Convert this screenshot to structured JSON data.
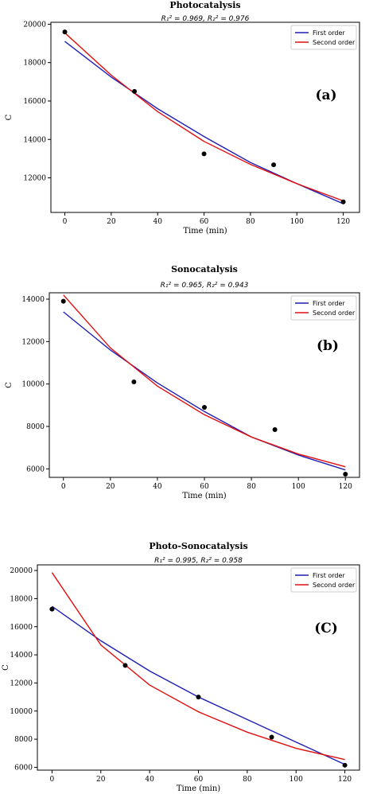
{
  "chart_data": [
    {
      "type": "line",
      "title": "Photocatalysis",
      "subtitle": "R₁² = 0.969, R₂² = 0.976",
      "panel_label": "(a)",
      "xlabel": "Time (min)",
      "ylabel": "C",
      "xlim": [
        -6,
        127
      ],
      "ylim": [
        10200,
        20100
      ],
      "xticks": [
        0,
        20,
        40,
        60,
        80,
        100,
        120
      ],
      "yticks": [
        12000,
        14000,
        16000,
        18000,
        20000
      ],
      "legend": {
        "position": "top-right",
        "entries": [
          "First order",
          "Second order"
        ]
      },
      "points": {
        "x": [
          0,
          30,
          60,
          90,
          120
        ],
        "y": [
          19600,
          16500,
          13250,
          12680,
          10750
        ]
      },
      "series": [
        {
          "name": "First order",
          "color": "#1f1fb4",
          "x": [
            0,
            20,
            40,
            60,
            80,
            100,
            120
          ],
          "y": [
            19100,
            17250,
            15600,
            14150,
            12800,
            11700,
            10650
          ]
        },
        {
          "name": "Second order",
          "color": "#e01010",
          "x": [
            0,
            20,
            40,
            60,
            80,
            100,
            120
          ],
          "y": [
            19550,
            17350,
            15450,
            13900,
            12700,
            11700,
            10800
          ]
        }
      ]
    },
    {
      "type": "line",
      "title": "Sonocatalysis",
      "subtitle": "R₁² = 0.965, R₂² = 0.943",
      "panel_label": "(b)",
      "xlabel": "Time (min)",
      "ylabel": "C",
      "xlim": [
        -6,
        126
      ],
      "ylim": [
        5600,
        14300
      ],
      "xticks": [
        0,
        20,
        40,
        60,
        80,
        100,
        120
      ],
      "yticks": [
        6000,
        8000,
        10000,
        12000,
        14000
      ],
      "legend": {
        "position": "top-right",
        "entries": [
          "First order",
          "Second order"
        ]
      },
      "points": {
        "x": [
          0,
          30,
          60,
          90,
          120
        ],
        "y": [
          13900,
          10100,
          8900,
          7850,
          5750
        ]
      },
      "series": [
        {
          "name": "First order",
          "color": "#1f1fb4",
          "x": [
            0,
            20,
            40,
            60,
            80,
            100,
            120
          ],
          "y": [
            13400,
            11600,
            10050,
            8700,
            7500,
            6650,
            5950
          ]
        },
        {
          "name": "Second order",
          "color": "#e01010",
          "x": [
            0,
            20,
            40,
            60,
            80,
            100,
            120
          ],
          "y": [
            14200,
            11700,
            9900,
            8550,
            7500,
            6700,
            6100
          ]
        }
      ]
    },
    {
      "type": "line",
      "title": "Photo-Sonocatalysis",
      "subtitle": "R₁² = 0.995, R₂² = 0.958",
      "panel_label": "(C)",
      "xlabel": "Time (min)",
      "ylabel": "C",
      "xlim": [
        -6,
        126
      ],
      "ylim": [
        5800,
        20400
      ],
      "xticks": [
        0,
        20,
        40,
        60,
        80,
        100,
        120
      ],
      "yticks": [
        6000,
        8000,
        10000,
        12000,
        14000,
        16000,
        18000,
        20000
      ],
      "legend": {
        "position": "top-right",
        "entries": [
          "First order",
          "Second order"
        ]
      },
      "points": {
        "x": [
          0,
          30,
          60,
          90,
          120
        ],
        "y": [
          17250,
          13250,
          11000,
          8150,
          6150
        ]
      },
      "series": [
        {
          "name": "First order",
          "color": "#1f1fb4",
          "x": [
            0,
            20,
            40,
            60,
            80,
            100,
            120
          ],
          "y": [
            17450,
            15000,
            12850,
            11000,
            9400,
            7800,
            6200
          ]
        },
        {
          "name": "Second order",
          "color": "#e01010",
          "x": [
            0,
            20,
            40,
            60,
            80,
            100,
            120
          ],
          "y": [
            19850,
            14700,
            11850,
            9950,
            8500,
            7350,
            6550
          ]
        }
      ]
    }
  ]
}
